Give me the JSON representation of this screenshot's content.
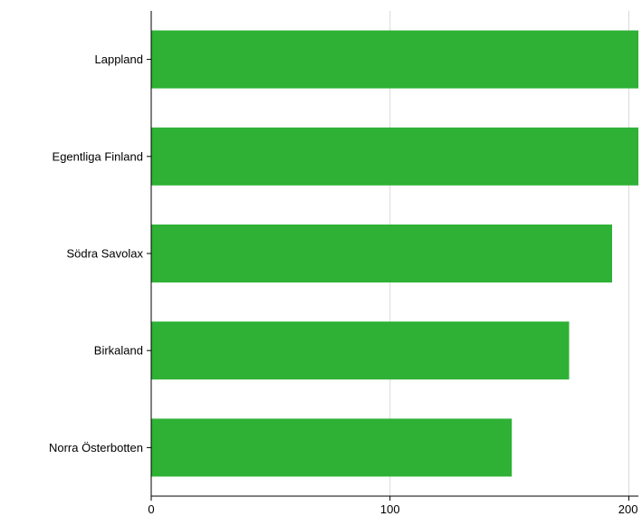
{
  "chart_data": {
    "type": "bar",
    "orientation": "horizontal",
    "categories": [
      "Lappland",
      "Egentliga Finland",
      "Södra Savolax",
      "Birkaland",
      "Norra Österbotten"
    ],
    "values": [
      204,
      204,
      193,
      175,
      151
    ],
    "title": "",
    "xlabel": "",
    "ylabel": "",
    "xlim": [
      0,
      204
    ],
    "x_ticks": [
      0,
      100,
      200
    ],
    "x_tick_labels": [
      "0",
      "100",
      "200"
    ],
    "grid": "vertical gridlines on",
    "legend": "none",
    "bar_color": "#2eb135",
    "grid_color": "#d9d9d9",
    "axis_color": "#000000"
  }
}
